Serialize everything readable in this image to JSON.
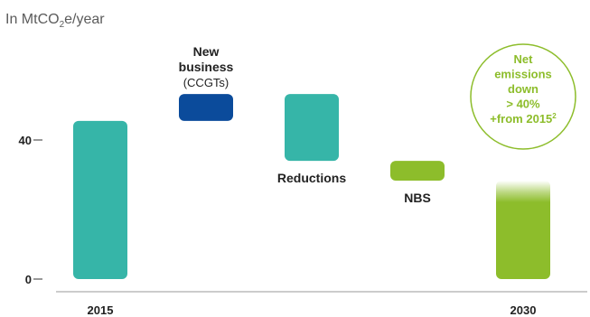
{
  "chart_data": {
    "type": "bar",
    "subtype": "waterfall",
    "unit_label": {
      "prefix": "In MtCO",
      "subscript": "2",
      "suffix": "e/year"
    },
    "yticks": [
      {
        "label": "40",
        "value": 40
      },
      {
        "label": "0",
        "value": 0
      }
    ],
    "ylim": [
      0,
      53
    ],
    "bars": [
      {
        "id": "b2015",
        "category": "2015",
        "start": 0,
        "end": 45.5,
        "color": "#36b5a8",
        "label_lines": []
      },
      {
        "id": "bnew",
        "category": "",
        "start": 45.5,
        "end": 53.2,
        "color": "#0b4b9b",
        "label_lines": [
          {
            "text": "New",
            "style": "bold"
          },
          {
            "text": "business",
            "style": "bold"
          },
          {
            "text": "(CCGTs)",
            "style": "normal"
          }
        ]
      },
      {
        "id": "bred",
        "category": "",
        "start": 34.0,
        "end": 53.2,
        "color": "#36b5a8",
        "label_lines": [
          {
            "text": "Reductions",
            "style": "bold"
          }
        ]
      },
      {
        "id": "bnbs",
        "category": "",
        "start": 28.3,
        "end": 34.0,
        "color": "#8dbd2b",
        "label_lines": [
          {
            "text": "NBS",
            "style": "bold"
          }
        ]
      },
      {
        "id": "b2030",
        "category": "2030",
        "start": 0,
        "end": 28.3,
        "color": "#8dbd2b",
        "label_lines": []
      }
    ],
    "callout": {
      "lines": [
        "Net",
        "emissions",
        "down",
        "> 40%",
        "+from 2015"
      ],
      "superscript": "2",
      "color": "#8dbd2b"
    }
  }
}
